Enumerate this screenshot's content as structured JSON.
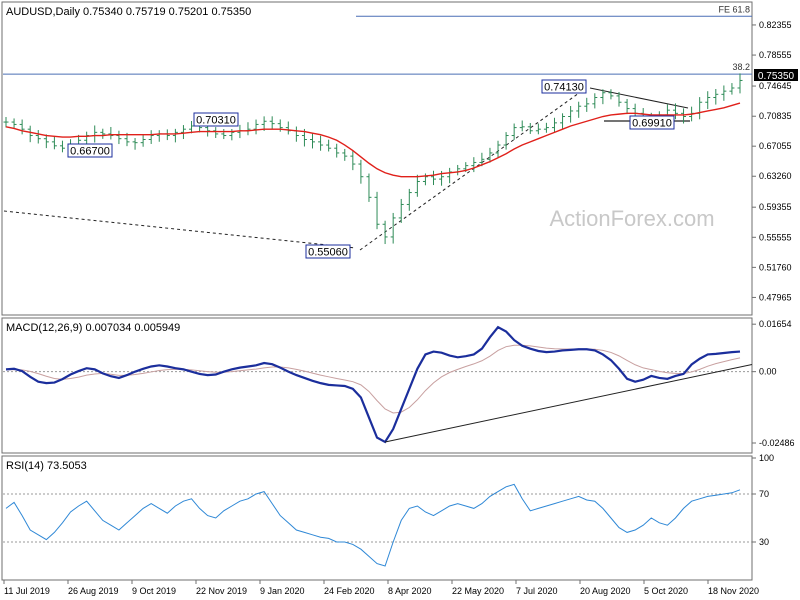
{
  "chart_data": {
    "type": "line",
    "panels": [
      {
        "name": "price",
        "title": "AUDUSD,Daily  0.75340 0.75719 0.75201 0.75350",
        "series_type": "ohlc-bars",
        "ylim": [
          0.46,
          0.85
        ],
        "yticks": [
          "0.82355",
          "0.78555",
          "0.74645",
          "0.70835",
          "0.67055",
          "0.63260",
          "0.59355",
          "0.55555",
          "0.51760",
          "0.47965"
        ],
        "current_price": "0.75350",
        "watermark": "ActionForex.com",
        "annotations": [
          {
            "label": "FE 61.8",
            "y": 0.8345,
            "type": "hline-segment"
          },
          {
            "label": "38.2",
            "y": 0.7615,
            "type": "hline"
          },
          {
            "label": "0.74130",
            "y": 0.7413,
            "type": "pivot"
          },
          {
            "label": "0.70310",
            "y": 0.7031,
            "type": "pivot"
          },
          {
            "label": "0.66700",
            "y": 0.667,
            "type": "pivot"
          },
          {
            "label": "0.69910",
            "y": 0.6991,
            "type": "pivot"
          },
          {
            "label": "0.55060",
            "y": 0.5506,
            "type": "pivot"
          }
        ],
        "close": [
          0.701,
          0.698,
          0.692,
          0.684,
          0.68,
          0.676,
          0.671,
          0.668,
          0.672,
          0.678,
          0.684,
          0.688,
          0.686,
          0.684,
          0.68,
          0.676,
          0.675,
          0.679,
          0.684,
          0.686,
          0.684,
          0.688,
          0.692,
          0.696,
          0.694,
          0.69,
          0.686,
          0.684,
          0.688,
          0.69,
          0.692,
          0.698,
          0.702,
          0.699,
          0.694,
          0.69,
          0.684,
          0.679,
          0.676,
          0.672,
          0.668,
          0.662,
          0.658,
          0.648,
          0.632,
          0.606,
          0.572,
          0.556,
          0.58,
          0.597,
          0.612,
          0.626,
          0.632,
          0.629,
          0.632,
          0.638,
          0.642,
          0.646,
          0.65,
          0.654,
          0.662,
          0.672,
          0.684,
          0.694,
          0.695,
          0.69,
          0.692,
          0.694,
          0.7,
          0.708,
          0.715,
          0.721,
          0.724,
          0.732,
          0.738,
          0.734,
          0.726,
          0.718,
          0.712,
          0.706,
          0.702,
          0.71,
          0.716,
          0.712,
          0.708,
          0.712,
          0.726,
          0.732,
          0.736,
          0.74,
          0.744,
          0.7535
        ],
        "ma": [
          0.695,
          0.693,
          0.69,
          0.688,
          0.686,
          0.684,
          0.683,
          0.682,
          0.682,
          0.683,
          0.683,
          0.684,
          0.684,
          0.685,
          0.685,
          0.685,
          0.685,
          0.685,
          0.685,
          0.686,
          0.686,
          0.686,
          0.687,
          0.688,
          0.689,
          0.689,
          0.689,
          0.689,
          0.689,
          0.69,
          0.69,
          0.691,
          0.692,
          0.692,
          0.692,
          0.691,
          0.69,
          0.689,
          0.687,
          0.685,
          0.682,
          0.678,
          0.672,
          0.665,
          0.657,
          0.649,
          0.642,
          0.637,
          0.634,
          0.632,
          0.632,
          0.632,
          0.633,
          0.634,
          0.636,
          0.637,
          0.638,
          0.64,
          0.643,
          0.647,
          0.651,
          0.656,
          0.661,
          0.667,
          0.672,
          0.676,
          0.68,
          0.684,
          0.688,
          0.692,
          0.696,
          0.699,
          0.702,
          0.705,
          0.708,
          0.71,
          0.711,
          0.712,
          0.712,
          0.711,
          0.71,
          0.71,
          0.71,
          0.71,
          0.71,
          0.711,
          0.713,
          0.715,
          0.717,
          0.719,
          0.722,
          0.725
        ]
      },
      {
        "name": "macd",
        "title": "MACD(12,26,9) 0.007034 0.005949",
        "ylim": [
          -0.028,
          0.018
        ],
        "yticks": [
          "0.01654",
          "0.00",
          "-0.02486"
        ],
        "annotations": [
          {
            "type": "trendline",
            "points": [
              [
                47,
                -0.0245
              ],
              [
                91,
                0.0005
              ]
            ]
          }
        ],
        "macd": [
          0.0008,
          0.001,
          0.0002,
          -0.0018,
          -0.0035,
          -0.004,
          -0.0038,
          -0.0026,
          -0.001,
          0.0002,
          0.0012,
          0.0008,
          -0.0006,
          -0.0016,
          -0.0022,
          -0.0012,
          0.0,
          0.001,
          0.0018,
          0.0022,
          0.0018,
          0.0012,
          0.0008,
          0.0,
          -0.0008,
          -0.0012,
          -0.001,
          0.0,
          0.0008,
          0.0014,
          0.0018,
          0.0022,
          0.003,
          0.0026,
          0.0014,
          0.0,
          -0.0012,
          -0.0022,
          -0.0032,
          -0.004,
          -0.0046,
          -0.0048,
          -0.005,
          -0.006,
          -0.009,
          -0.016,
          -0.023,
          -0.0245,
          -0.02,
          -0.013,
          -0.006,
          0.001,
          0.006,
          0.007,
          0.0066,
          0.0056,
          0.005,
          0.0054,
          0.006,
          0.008,
          0.012,
          0.0155,
          0.014,
          0.011,
          0.009,
          0.008,
          0.0072,
          0.0068,
          0.007,
          0.0074,
          0.0076,
          0.0078,
          0.0078,
          0.0074,
          0.006,
          0.004,
          0.001,
          -0.0025,
          -0.0035,
          -0.0028,
          -0.0015,
          -0.0022,
          -0.0025,
          -0.0015,
          -0.0008,
          0.0025,
          0.0045,
          0.006,
          0.0062,
          0.0065,
          0.0068,
          0.007
        ],
        "signal": [
          0.0006,
          0.0007,
          0.0006,
          0.0001,
          -0.0007,
          -0.0016,
          -0.0024,
          -0.0027,
          -0.0024,
          -0.0019,
          -0.0012,
          -0.0008,
          -0.0006,
          -0.0009,
          -0.0013,
          -0.0013,
          -0.001,
          -0.0006,
          -0.0001,
          0.0004,
          0.0007,
          0.0008,
          0.0008,
          0.0006,
          0.0003,
          0.0,
          -0.0002,
          -0.0002,
          0.0,
          0.0003,
          0.0006,
          0.0009,
          0.0013,
          0.0016,
          0.0016,
          0.0013,
          0.0008,
          0.0002,
          -0.0005,
          -0.0012,
          -0.0018,
          -0.0024,
          -0.0029,
          -0.0035,
          -0.0046,
          -0.0069,
          -0.0101,
          -0.013,
          -0.0144,
          -0.0141,
          -0.0125,
          -0.0098,
          -0.0066,
          -0.0039,
          -0.0018,
          -0.0003,
          0.0008,
          0.0018,
          0.0027,
          0.0038,
          0.0054,
          0.0074,
          0.0087,
          0.0092,
          0.0092,
          0.009,
          0.0086,
          0.0082,
          0.008,
          0.0079,
          0.0079,
          0.0079,
          0.0079,
          0.0078,
          0.0074,
          0.0067,
          0.0055,
          0.0039,
          0.0024,
          0.0013,
          0.0007,
          0.0001,
          -0.0004,
          -0.0006,
          -0.0007,
          -0.0001,
          0.0008,
          0.0019,
          0.0028,
          0.0035,
          0.0042,
          0.0048
        ]
      },
      {
        "name": "rsi",
        "title": "RSI(14) 73.5053",
        "ylim": [
          0,
          100
        ],
        "yticks": [
          "100",
          "70",
          "30",
          "0"
        ],
        "rsi": [
          58,
          63,
          52,
          40,
          36,
          32,
          38,
          46,
          55,
          60,
          64,
          56,
          48,
          44,
          40,
          46,
          52,
          58,
          62,
          58,
          54,
          60,
          64,
          66,
          58,
          52,
          50,
          56,
          60,
          64,
          66,
          70,
          72,
          62,
          52,
          46,
          40,
          38,
          36,
          34,
          33,
          30,
          30,
          28,
          24,
          18,
          12,
          10,
          30,
          48,
          58,
          60,
          55,
          52,
          56,
          60,
          62,
          60,
          58,
          62,
          68,
          72,
          76,
          78,
          66,
          56,
          58,
          60,
          62,
          64,
          66,
          68,
          65,
          64,
          58,
          50,
          42,
          38,
          40,
          44,
          50,
          46,
          44,
          50,
          58,
          64,
          66,
          68,
          69,
          70,
          71,
          73.5
        ]
      }
    ],
    "x": {
      "n": 92,
      "tick_labels": [
        "11 Jul 2019",
        "26 Aug 2019",
        "9 Oct 2019",
        "22 Nov 2019",
        "9 Jan 2020",
        "24 Feb 2020",
        "8 Apr 2020",
        "22 May 2020",
        "7 Jul 2020",
        "20 Aug 2020",
        "5 Oct 2020",
        "18 Nov 2020"
      ]
    },
    "grid": false,
    "colors": {
      "bars": "#2e8b57",
      "ma": "#e0201a",
      "macd": "#1b2e9c",
      "signal": "#c8a0a0",
      "rsi": "#2f88d6",
      "levels": "#4a6fb5",
      "axis": "#6f6f6f",
      "trend": "#222222",
      "label_border": "#1b2e9c",
      "watermark": "#c8c8c8"
    }
  }
}
